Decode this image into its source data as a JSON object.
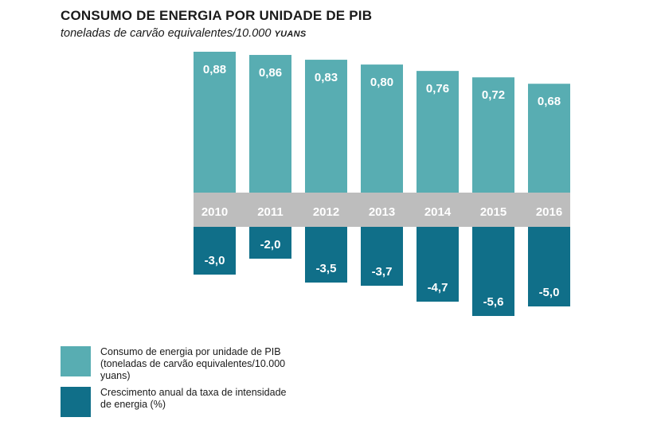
{
  "header": {
    "title": "CONSUMO DE ENERGIA POR UNIDADE DE PIB",
    "subtitle_main": "toneladas de carvão equivalentes/10.000 ",
    "subtitle_unit": "YUANS"
  },
  "colors": {
    "series_top": "#58adb2",
    "series_bottom": "#106f89",
    "year_band": "#bdbdbd"
  },
  "chart_data": {
    "type": "bar",
    "title": "CONSUMO DE ENERGIA POR UNIDADE DE PIB",
    "subtitle": "toneladas de carvão equivalentes/10.000 yuans",
    "categories": [
      "2010",
      "2011",
      "2012",
      "2013",
      "2014",
      "2015",
      "2016"
    ],
    "series": [
      {
        "name": "Consumo de energia por unidade de PIB (toneladas de carvão equivalentes/10.000 yuans)",
        "values": [
          0.88,
          0.86,
          0.83,
          0.8,
          0.76,
          0.72,
          0.68
        ],
        "labels": [
          "0,88",
          "0,86",
          "0,83",
          "0,80",
          "0,76",
          "0,72",
          "0,68"
        ]
      },
      {
        "name": "Crescimento anual da taxa de intensidade de energia (%)",
        "values": [
          -3.0,
          -2.0,
          -3.5,
          -3.7,
          -4.7,
          -5.6,
          -5.0
        ],
        "labels": [
          "-3,0",
          "-2,0",
          "-3,5",
          "-3,7",
          "-4,7",
          "-5,6",
          "-5,0"
        ]
      }
    ],
    "legend_position": "bottom-left",
    "grid": false
  },
  "legend": {
    "items": [
      {
        "label": "Consumo de energia por unidade de PIB (toneladas de carvão equivalentes/10.000 yuans)"
      },
      {
        "label": "Crescimento anual da taxa de intensidade de energia (%)"
      }
    ]
  }
}
